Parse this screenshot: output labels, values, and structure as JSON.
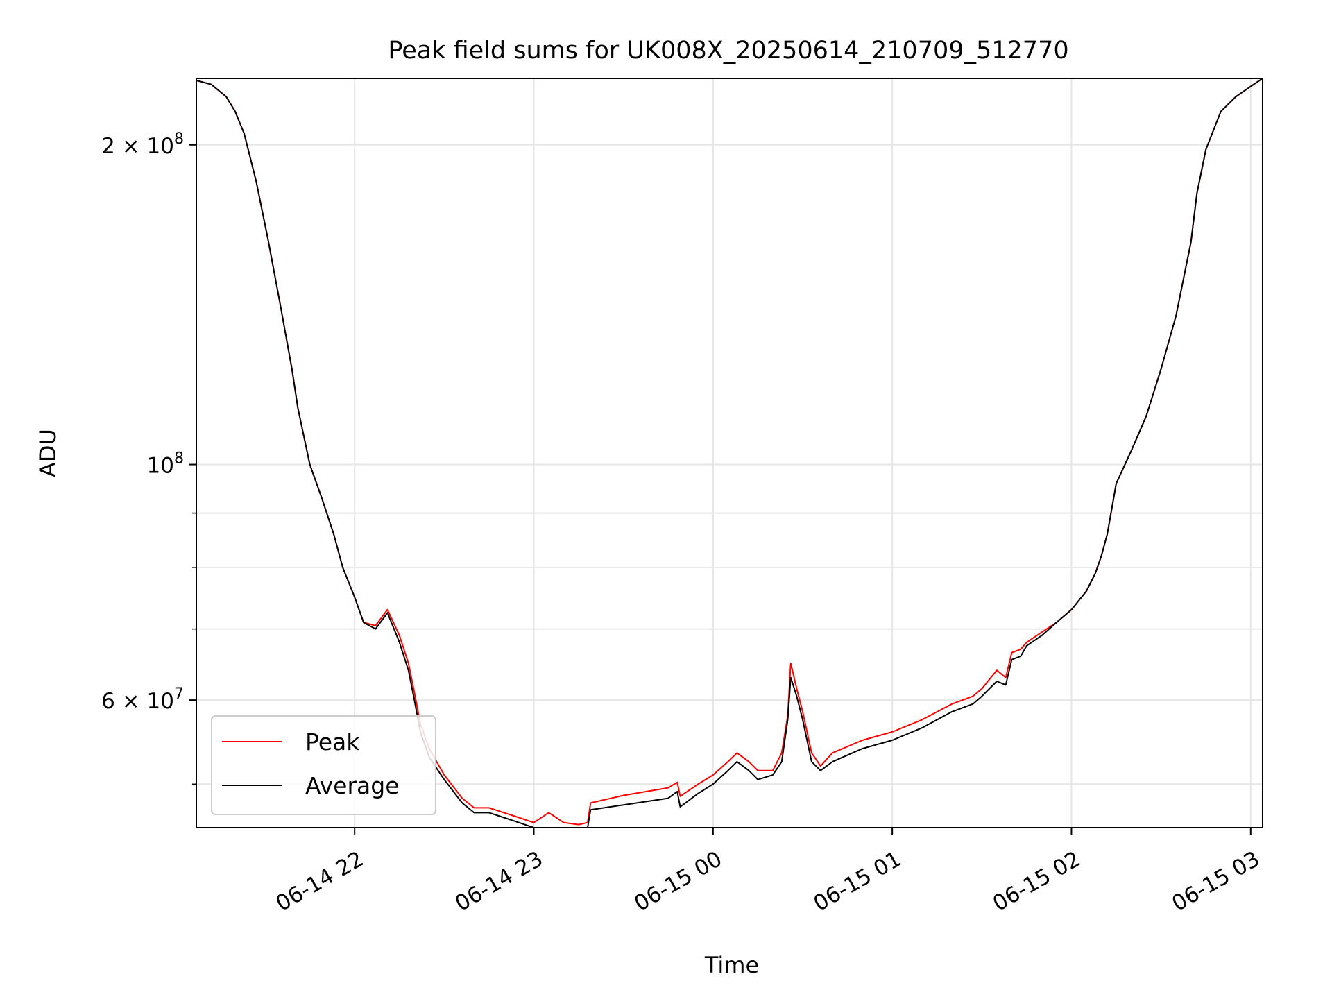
{
  "chart_data": {
    "type": "line",
    "title": "Peak field sums for UK008X_20250614_210709_512770",
    "xlabel": "Time",
    "ylabel": "ADU",
    "yscale": "log",
    "grid": true,
    "legend_placement": "lower-left",
    "xlim": [
      "2025-06-14 21:07",
      "2025-06-15 03:04"
    ],
    "ylim": [
      45500000,
      231000000
    ],
    "x_ticks": [
      {
        "value": "2025-06-14 22:00",
        "label": "06-14 22"
      },
      {
        "value": "2025-06-14 23:00",
        "label": "06-14 23"
      },
      {
        "value": "2025-06-15 00:00",
        "label": "06-15 00"
      },
      {
        "value": "2025-06-15 01:00",
        "label": "06-15 01"
      },
      {
        "value": "2025-06-15 02:00",
        "label": "06-15 02"
      },
      {
        "value": "2025-06-15 03:00",
        "label": "06-15 03"
      }
    ],
    "y_major_ticks": [
      {
        "value": 200000000,
        "mantissa": "2",
        "exponent": "8"
      },
      {
        "value": 100000000,
        "mantissa": "",
        "exponent": "8"
      },
      {
        "value": 60000000,
        "mantissa": "6",
        "exponent": "7"
      }
    ],
    "y_minor_grid": [
      50000000,
      70000000,
      80000000,
      90000000
    ],
    "series": [
      {
        "name": "Peak",
        "color": "#ff0000",
        "x": [
          "2025-06-14 21:07",
          "2025-06-14 21:12",
          "2025-06-14 21:17",
          "2025-06-14 21:20",
          "2025-06-14 21:23",
          "2025-06-14 21:27",
          "2025-06-14 21:31",
          "2025-06-14 21:35",
          "2025-06-14 21:39",
          "2025-06-14 21:41",
          "2025-06-14 21:45",
          "2025-06-14 21:49",
          "2025-06-14 21:53",
          "2025-06-14 21:56",
          "2025-06-14 22:00",
          "2025-06-14 22:03",
          "2025-06-14 22:07",
          "2025-06-14 22:11",
          "2025-06-14 22:15",
          "2025-06-14 22:18",
          "2025-06-14 22:20",
          "2025-06-14 22:22",
          "2025-06-14 22:25",
          "2025-06-14 22:30",
          "2025-06-14 22:36",
          "2025-06-14 22:40",
          "2025-06-14 22:45",
          "2025-06-14 22:50",
          "2025-06-14 22:55",
          "2025-06-14 23:00",
          "2025-06-14 23:05",
          "2025-06-14 23:10",
          "2025-06-14 23:15",
          "2025-06-14 23:18",
          "2025-06-14 23:19",
          "2025-06-14 23:30",
          "2025-06-14 23:45",
          "2025-06-14 23:48",
          "2025-06-14 23:49",
          "2025-06-14 23:55",
          "2025-06-15 00:00",
          "2025-06-15 00:05",
          "2025-06-15 00:08",
          "2025-06-15 00:12",
          "2025-06-15 00:15",
          "2025-06-15 00:20",
          "2025-06-15 00:23",
          "2025-06-15 00:25",
          "2025-06-15 00:26",
          "2025-06-15 00:28",
          "2025-06-15 00:30",
          "2025-06-15 00:33",
          "2025-06-15 00:36",
          "2025-06-15 00:40",
          "2025-06-15 00:50",
          "2025-06-15 01:00",
          "2025-06-15 01:10",
          "2025-06-15 01:20",
          "2025-06-15 01:27",
          "2025-06-15 01:30",
          "2025-06-15 01:35",
          "2025-06-15 01:38",
          "2025-06-15 01:40",
          "2025-06-15 01:43",
          "2025-06-15 01:45",
          "2025-06-15 01:50",
          "2025-06-15 01:55",
          "2025-06-15 02:00",
          "2025-06-15 02:05",
          "2025-06-15 02:08",
          "2025-06-15 02:10",
          "2025-06-15 02:12",
          "2025-06-15 02:15",
          "2025-06-15 02:20",
          "2025-06-15 02:25",
          "2025-06-15 02:30",
          "2025-06-15 02:35",
          "2025-06-15 02:40",
          "2025-06-15 02:42",
          "2025-06-15 02:45",
          "2025-06-15 02:50",
          "2025-06-15 02:55",
          "2025-06-15 03:00",
          "2025-06-15 03:04"
        ],
        "y": [
          230000000,
          228000000,
          222000000,
          215000000,
          205000000,
          185000000,
          163000000,
          142000000,
          123000000,
          113000000,
          100000000,
          93000000,
          86000000,
          80000000,
          75000000,
          71000000,
          70500000,
          73000000,
          69000000,
          65000000,
          61000000,
          57000000,
          54000000,
          51000000,
          48500000,
          47500000,
          47500000,
          47000000,
          46500000,
          46000000,
          47000000,
          46000000,
          45800000,
          46000000,
          48000000,
          48800000,
          49600000,
          50200000,
          48700000,
          50000000,
          51000000,
          52500000,
          53500000,
          52500000,
          51500000,
          51500000,
          53500000,
          58000000,
          65000000,
          61500000,
          58500000,
          53500000,
          52000000,
          53500000,
          55000000,
          56000000,
          57500000,
          59500000,
          60500000,
          61500000,
          64000000,
          63000000,
          66500000,
          67000000,
          68000000,
          69500000,
          71000000,
          73000000,
          76000000,
          79000000,
          82000000,
          86000000,
          96000000,
          103000000,
          111000000,
          123000000,
          138000000,
          162000000,
          180000000,
          198000000,
          215000000,
          222000000,
          227000000,
          231000000
        ]
      },
      {
        "name": "Average",
        "color": "#000000",
        "x": [
          "2025-06-14 21:07",
          "2025-06-14 21:12",
          "2025-06-14 21:17",
          "2025-06-14 21:20",
          "2025-06-14 21:23",
          "2025-06-14 21:27",
          "2025-06-14 21:31",
          "2025-06-14 21:35",
          "2025-06-14 21:39",
          "2025-06-14 21:41",
          "2025-06-14 21:45",
          "2025-06-14 21:49",
          "2025-06-14 21:53",
          "2025-06-14 21:56",
          "2025-06-14 22:00",
          "2025-06-14 22:03",
          "2025-06-14 22:07",
          "2025-06-14 22:11",
          "2025-06-14 22:15",
          "2025-06-14 22:18",
          "2025-06-14 22:20",
          "2025-06-14 22:22",
          "2025-06-14 22:25",
          "2025-06-14 22:30",
          "2025-06-14 22:36",
          "2025-06-14 22:40",
          "2025-06-14 22:45",
          "2025-06-14 22:50",
          "2025-06-14 22:55",
          "2025-06-14 23:00",
          "2025-06-14 23:05",
          "2025-06-14 23:10",
          "2025-06-14 23:15",
          "2025-06-14 23:18",
          "2025-06-14 23:19",
          "2025-06-14 23:30",
          "2025-06-14 23:45",
          "2025-06-14 23:48",
          "2025-06-14 23:49",
          "2025-06-14 23:55",
          "2025-06-15 00:00",
          "2025-06-15 00:05",
          "2025-06-15 00:08",
          "2025-06-15 00:12",
          "2025-06-15 00:15",
          "2025-06-15 00:20",
          "2025-06-15 00:23",
          "2025-06-15 00:25",
          "2025-06-15 00:26",
          "2025-06-15 00:28",
          "2025-06-15 00:30",
          "2025-06-15 00:33",
          "2025-06-15 00:36",
          "2025-06-15 00:40",
          "2025-06-15 00:50",
          "2025-06-15 01:00",
          "2025-06-15 01:10",
          "2025-06-15 01:20",
          "2025-06-15 01:27",
          "2025-06-15 01:30",
          "2025-06-15 01:35",
          "2025-06-15 01:38",
          "2025-06-15 01:40",
          "2025-06-15 01:43",
          "2025-06-15 01:45",
          "2025-06-15 01:50",
          "2025-06-15 01:55",
          "2025-06-15 02:00",
          "2025-06-15 02:05",
          "2025-06-15 02:08",
          "2025-06-15 02:10",
          "2025-06-15 02:12",
          "2025-06-15 02:15",
          "2025-06-15 02:20",
          "2025-06-15 02:25",
          "2025-06-15 02:30",
          "2025-06-15 02:35",
          "2025-06-15 02:40",
          "2025-06-15 02:42",
          "2025-06-15 02:45",
          "2025-06-15 02:50",
          "2025-06-15 02:55",
          "2025-06-15 03:00",
          "2025-06-15 03:04"
        ],
        "y": [
          230000000,
          228000000,
          222000000,
          215000000,
          205000000,
          185000000,
          163000000,
          142000000,
          123000000,
          113000000,
          100000000,
          93000000,
          86000000,
          80000000,
          75000000,
          71000000,
          70000000,
          72500000,
          68000000,
          64000000,
          60000000,
          56000000,
          53000000,
          50500000,
          48000000,
          47000000,
          47000000,
          46500000,
          46000000,
          45500000,
          45500000,
          45500000,
          45500000,
          45500000,
          47300000,
          47800000,
          48500000,
          49200000,
          47600000,
          49000000,
          50000000,
          51500000,
          52500000,
          51500000,
          50500000,
          51000000,
          52500000,
          57500000,
          63000000,
          60500000,
          57500000,
          52500000,
          51500000,
          52500000,
          54000000,
          55000000,
          56500000,
          58500000,
          59500000,
          60500000,
          62500000,
          62000000,
          65500000,
          66000000,
          67500000,
          69000000,
          71000000,
          73000000,
          76000000,
          79000000,
          82000000,
          86000000,
          96000000,
          103000000,
          111000000,
          123000000,
          138000000,
          162000000,
          180000000,
          198000000,
          215000000,
          222000000,
          227000000,
          231000000
        ]
      }
    ]
  }
}
